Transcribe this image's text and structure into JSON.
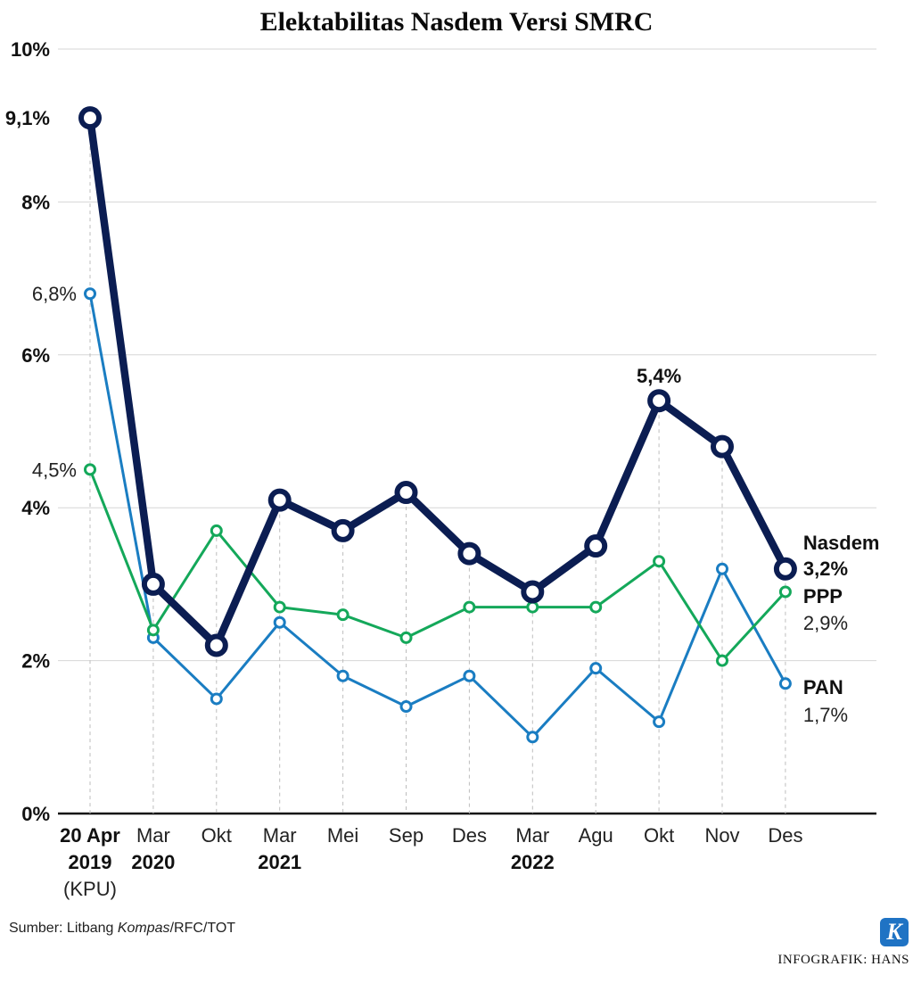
{
  "chart_data": {
    "type": "line",
    "title": "Elektabilitas Nasdem Versi SMRC",
    "ylim": [
      0,
      10
    ],
    "yticks": [
      "0%",
      "2%",
      "4%",
      "6%",
      "8%",
      "10%"
    ],
    "ytick_values": [
      0,
      2,
      4,
      6,
      8,
      10
    ],
    "categories": [
      "20 Apr 2019 (KPU)",
      "Mar 2020",
      "Okt",
      "Mar 2021",
      "Mei",
      "Sep",
      "Des",
      "Mar 2022",
      "Agu",
      "Okt",
      "Nov",
      "Des"
    ],
    "xtick_lines": [
      [
        "20 Apr",
        "2019",
        "(KPU)"
      ],
      [
        "Mar",
        "2020"
      ],
      [
        "Okt"
      ],
      [
        "Mar",
        "2021"
      ],
      [
        "Mei"
      ],
      [
        "Sep"
      ],
      [
        "Des"
      ],
      [
        "Mar",
        "2022"
      ],
      [
        "Agu"
      ],
      [
        "Okt"
      ],
      [
        "Nov"
      ],
      [
        "Des"
      ]
    ],
    "series": [
      {
        "name": "PAN",
        "color": "#1a7dc2",
        "values": [
          6.8,
          2.3,
          1.5,
          2.5,
          1.8,
          1.4,
          1.8,
          1.0,
          1.9,
          1.2,
          3.2,
          1.7
        ]
      },
      {
        "name": "PPP",
        "color": "#14a85a",
        "values": [
          4.5,
          2.4,
          3.7,
          2.7,
          2.6,
          2.3,
          2.7,
          2.7,
          2.7,
          3.3,
          2.0,
          2.9
        ]
      },
      {
        "name": "Nasdem",
        "color": "#0b1d52",
        "values": [
          9.1,
          3.0,
          2.2,
          4.1,
          3.7,
          4.2,
          3.4,
          2.9,
          3.5,
          5.4,
          4.8,
          3.2
        ]
      }
    ],
    "annotations": {
      "nasdem_start": "9,1%",
      "pan_start": "6,8%",
      "ppp_start": "4,5%",
      "nasdem_peak": "5,4%",
      "nasdem_end_name": "Nasdem",
      "nasdem_end_value": "3,2%",
      "ppp_end_name": "PPP",
      "ppp_end_value": "2,9%",
      "pan_end_name": "PAN",
      "pan_end_value": "1,7%"
    }
  },
  "footer": {
    "source_prefix": "Sumber: Litbang ",
    "source_italic": "Kompas",
    "source_suffix": "/RFC/TOT",
    "credit": "INFOGRAFIK: HANS",
    "logo_letter": "K"
  }
}
